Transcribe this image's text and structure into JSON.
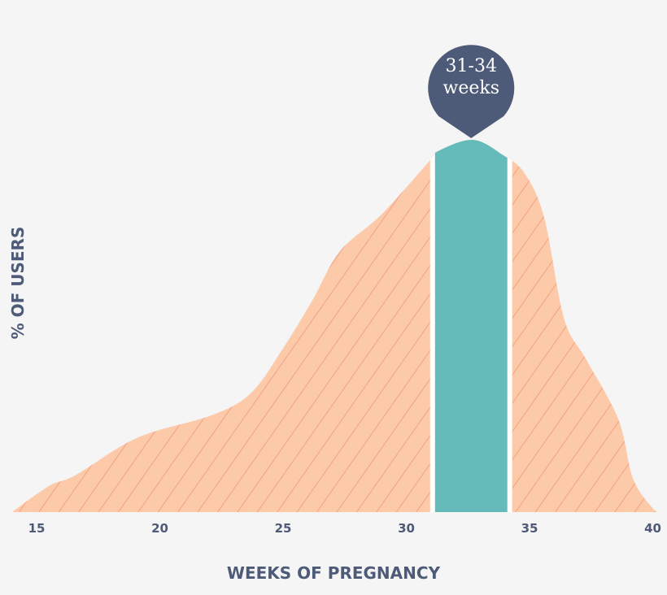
{
  "chart_data": {
    "type": "area",
    "xlabel": "WEEKS OF PREGNANCY",
    "ylabel": "% OF USERS",
    "xlim": [
      14,
      40.3
    ],
    "ylim": [
      0,
      100
    ],
    "x_ticks": [
      "15",
      "20",
      "25",
      "30",
      "35",
      "40"
    ],
    "grid": false,
    "x": [
      14.0,
      15.5,
      16.6,
      19.1,
      22.1,
      23.7,
      25.0,
      26.2,
      27.3,
      29.0,
      30.9,
      31.3,
      32.7,
      33.9,
      34.8,
      35.6,
      36.4,
      37.3,
      38.6,
      39.2,
      40.0,
      40.3
    ],
    "values": [
      0,
      7,
      10,
      20,
      26,
      32,
      44,
      57,
      70,
      80,
      94,
      97,
      100,
      96,
      91,
      79,
      52,
      41,
      25,
      9,
      1,
      0
    ],
    "highlight": {
      "from": 31,
      "to": 34,
      "label_line1": "31-34",
      "label_line2": "weeks"
    },
    "colors": {
      "area": "#fccaa9",
      "hatch": "#f4a184",
      "highlight": "#64bbb9",
      "pin": "#4d5a78",
      "text": "#4d5a78",
      "background": "#f5f5f5"
    }
  }
}
